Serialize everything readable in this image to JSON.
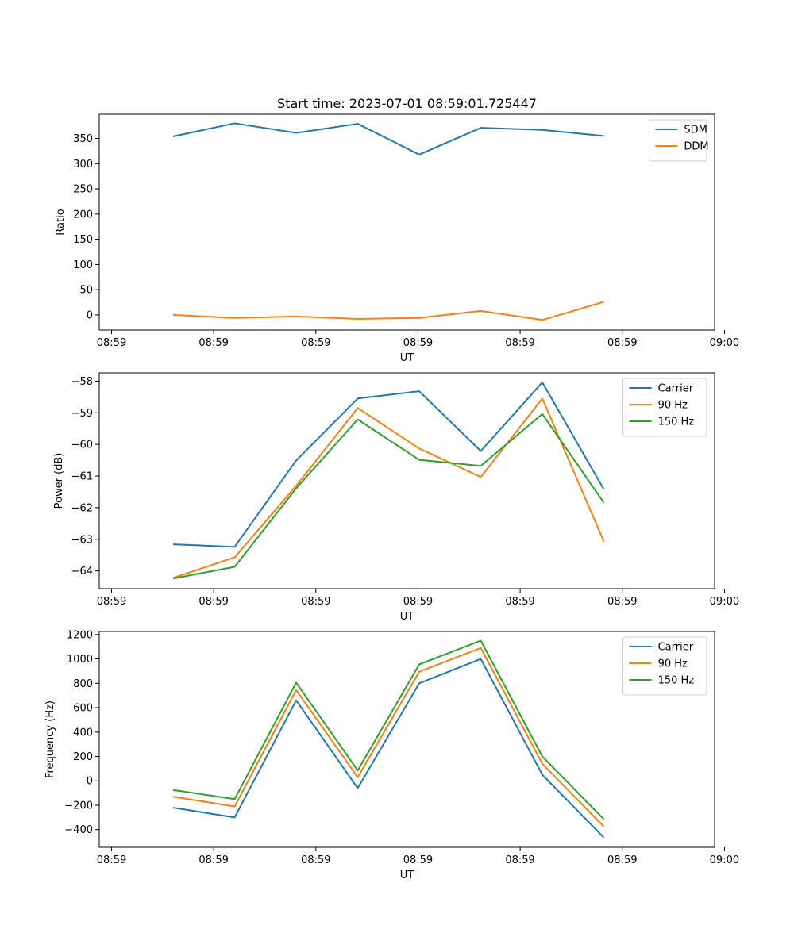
{
  "figure": {
    "title": "Start time: 2023-07-01 08:59:01.725447"
  },
  "chart_data": [
    {
      "type": "line",
      "title": "Start time: 2023-07-01 08:59:01.725447",
      "xlabel": "UT",
      "ylabel": "Ratio",
      "xlim": [
        -1.2,
        8.8
      ],
      "ylim": [
        -30,
        398
      ],
      "grid": false,
      "legend_position": "top-right",
      "x_ticks": [
        {
          "value": -1,
          "label": "08:59"
        },
        {
          "value": 0.66,
          "label": "08:59"
        },
        {
          "value": 2.32,
          "label": "08:59"
        },
        {
          "value": 3.98,
          "label": "08:59"
        },
        {
          "value": 5.64,
          "label": "08:59"
        },
        {
          "value": 7.3,
          "label": "08:59"
        },
        {
          "value": 8.96,
          "label": "09:00"
        }
      ],
      "y_ticks": [
        {
          "value": 0,
          "label": "0"
        },
        {
          "value": 50,
          "label": "50"
        },
        {
          "value": 100,
          "label": "100"
        },
        {
          "value": 150,
          "label": "150"
        },
        {
          "value": 200,
          "label": "200"
        },
        {
          "value": 250,
          "label": "250"
        },
        {
          "value": 300,
          "label": "300"
        },
        {
          "value": 350,
          "label": "350"
        }
      ],
      "x": [
        0,
        1,
        2,
        3,
        4,
        5,
        6,
        7
      ],
      "series": [
        {
          "name": "SDM",
          "color": "#1f77b4",
          "values": [
            354,
            380,
            361,
            379,
            318,
            371,
            367,
            355
          ]
        },
        {
          "name": "DDM",
          "color": "#ff7f0e",
          "values": [
            0,
            -6,
            -3,
            -8,
            -6,
            8,
            -10,
            26
          ]
        }
      ]
    },
    {
      "type": "line",
      "title": "",
      "xlabel": "UT",
      "ylabel": "Power (dB)",
      "xlim": [
        -1.2,
        8.8
      ],
      "ylim": [
        -64.56,
        -57.74
      ],
      "grid": false,
      "legend_position": "top-right",
      "x_ticks": [
        {
          "value": -1,
          "label": "08:59"
        },
        {
          "value": 0.66,
          "label": "08:59"
        },
        {
          "value": 2.32,
          "label": "08:59"
        },
        {
          "value": 3.98,
          "label": "08:59"
        },
        {
          "value": 5.64,
          "label": "08:59"
        },
        {
          "value": 7.3,
          "label": "08:59"
        },
        {
          "value": 8.96,
          "label": "09:00"
        }
      ],
      "y_ticks": [
        {
          "value": -64,
          "label": "−64"
        },
        {
          "value": -63,
          "label": "−63"
        },
        {
          "value": -62,
          "label": "−62"
        },
        {
          "value": -61,
          "label": "−61"
        },
        {
          "value": -60,
          "label": "−60"
        },
        {
          "value": -59,
          "label": "−59"
        },
        {
          "value": -58,
          "label": "−58"
        }
      ],
      "x": [
        0,
        1,
        2,
        3,
        4,
        5,
        6,
        7
      ],
      "series": [
        {
          "name": "Carrier",
          "color": "#1f77b4",
          "values": [
            -63.16,
            -63.24,
            -60.51,
            -58.55,
            -58.32,
            -60.21,
            -58.04,
            -61.42
          ]
        },
        {
          "name": "90 Hz",
          "color": "#ff7f0e",
          "values": [
            -64.22,
            -63.57,
            -61.31,
            -58.85,
            -60.13,
            -61.03,
            -58.55,
            -63.07
          ]
        },
        {
          "name": "150 Hz",
          "color": "#2ca02c",
          "values": [
            -64.24,
            -63.87,
            -61.39,
            -59.21,
            -60.49,
            -60.68,
            -59.04,
            -61.84
          ]
        }
      ]
    },
    {
      "type": "line",
      "title": "",
      "xlabel": "UT",
      "ylabel": "Frequency (Hz)",
      "xlim": [
        -1.2,
        8.8
      ],
      "ylim": [
        -545,
        1225
      ],
      "grid": false,
      "legend_position": "top-right",
      "x_ticks": [
        {
          "value": -1,
          "label": "08:59"
        },
        {
          "value": 0.66,
          "label": "08:59"
        },
        {
          "value": 2.32,
          "label": "08:59"
        },
        {
          "value": 3.98,
          "label": "08:59"
        },
        {
          "value": 5.64,
          "label": "08:59"
        },
        {
          "value": 7.3,
          "label": "08:59"
        },
        {
          "value": 8.96,
          "label": "09:00"
        }
      ],
      "y_ticks": [
        {
          "value": -400,
          "label": "−400"
        },
        {
          "value": -200,
          "label": "−200"
        },
        {
          "value": 0,
          "label": "0"
        },
        {
          "value": 200,
          "label": "200"
        },
        {
          "value": 400,
          "label": "400"
        },
        {
          "value": 600,
          "label": "600"
        },
        {
          "value": 800,
          "label": "800"
        },
        {
          "value": 1000,
          "label": "1000"
        },
        {
          "value": 1200,
          "label": "1200"
        }
      ],
      "x": [
        0,
        1,
        2,
        3,
        4,
        5,
        6,
        7
      ],
      "series": [
        {
          "name": "Carrier",
          "color": "#1f77b4",
          "values": [
            -220,
            -300,
            660,
            -60,
            800,
            1000,
            50,
            -465
          ]
        },
        {
          "name": "90 Hz",
          "color": "#ff7f0e",
          "values": [
            -130,
            -210,
            745,
            30,
            895,
            1090,
            140,
            -375
          ]
        },
        {
          "name": "150 Hz",
          "color": "#2ca02c",
          "values": [
            -75,
            -150,
            805,
            85,
            955,
            1150,
            200,
            -315
          ]
        }
      ]
    }
  ]
}
